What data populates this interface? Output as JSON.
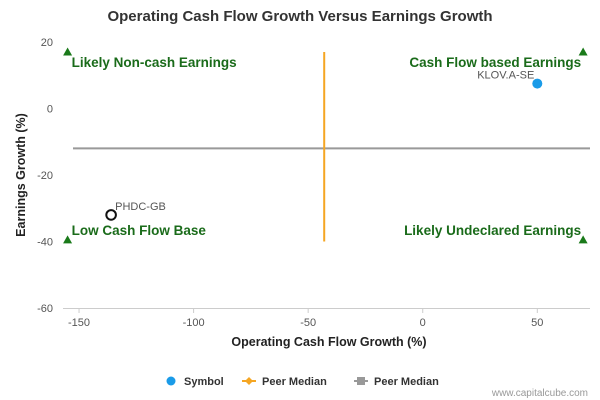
{
  "chart_data": {
    "type": "scatter",
    "title": "Operating Cash Flow Growth Versus Earnings Growth",
    "xlabel": "Operating Cash Flow Growth (%)",
    "ylabel": "Earnings Growth (%)",
    "xlim": [
      -157,
      73
    ],
    "ylim": [
      -60,
      20
    ],
    "x_ticks": [
      -150,
      -100,
      -50,
      0,
      50
    ],
    "y_ticks": [
      20,
      0,
      -20,
      -40,
      -60
    ],
    "grid": false,
    "points": [
      {
        "label": "KLOV.A-SE",
        "x": 50,
        "y": 7.5,
        "style": "filled",
        "color": "#1a9be8"
      },
      {
        "label": "PHDC-GB",
        "x": -136,
        "y": -32,
        "style": "hollow",
        "color": "#111111"
      }
    ],
    "peer_median_x": -43,
    "peer_median_x_span": [
      -40,
      17
    ],
    "peer_median_y": -12,
    "quadrant_labels": {
      "top_left": "Likely Non-cash Earnings",
      "top_right": "Cash Flow based Earnings",
      "bottom_left": "Low Cash Flow Base",
      "bottom_right": "Likely Undeclared Earnings"
    },
    "corner_markers": [
      {
        "x": -155,
        "y": 17
      },
      {
        "x": 70,
        "y": 17
      },
      {
        "x": -155,
        "y": -39.5
      },
      {
        "x": 70,
        "y": -39.5
      }
    ],
    "legend": {
      "placement": "bottom-center",
      "items": [
        {
          "name": "Symbol",
          "color": "#1a9be8",
          "marker": "circle"
        },
        {
          "name": "Peer Median",
          "color": "#f5a623",
          "marker": "diamond-line"
        },
        {
          "name": "Peer Median",
          "color": "#999999",
          "marker": "square-line"
        }
      ]
    },
    "colors": {
      "marker_green": "#1a7a1a",
      "vertical_median": "#f5a623",
      "horizontal_median": "#999999"
    }
  },
  "credit": "www.capitalcube.com"
}
